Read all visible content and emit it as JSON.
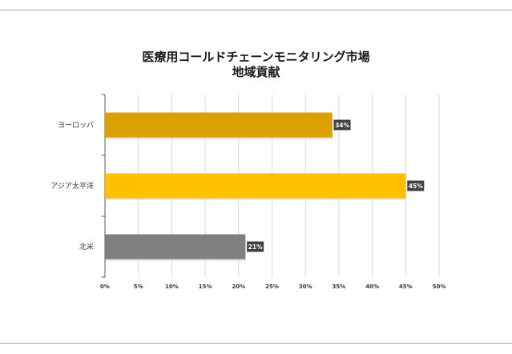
{
  "chart_data": {
    "type": "bar",
    "orientation": "horizontal",
    "title": [
      "医療用コールドチェーンモニタリング市場",
      "地域貢献"
    ],
    "categories": [
      "ヨーロッパ",
      "アジア太平洋",
      "北米"
    ],
    "values": [
      34,
      45,
      21
    ],
    "value_labels": [
      "34%",
      "45%",
      "21%"
    ],
    "colors": [
      "#dba100",
      "#ffc000",
      "#808080"
    ],
    "label_box_color": "#404040",
    "xlim": [
      0,
      50
    ],
    "x_ticks": [
      0,
      5,
      10,
      15,
      20,
      25,
      30,
      35,
      40,
      45,
      50
    ],
    "x_tick_labels": [
      "0%",
      "5%",
      "10%",
      "15%",
      "20%",
      "25%",
      "30%",
      "35%",
      "40%",
      "45%",
      "50%"
    ],
    "grid": "vertical",
    "legend": "none"
  }
}
